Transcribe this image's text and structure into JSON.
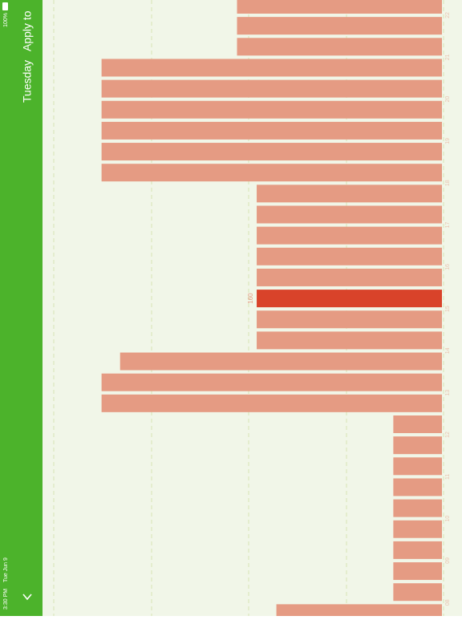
{
  "status_bar": {
    "time": "3:30 PM",
    "date": "Tue Jun 9",
    "battery": "100%"
  },
  "sidebar": {
    "apply": "Apply to",
    "day": "Tuesday"
  },
  "chart_data": {
    "type": "bar",
    "orientation": "horizontal",
    "hour_labels": [
      "22",
      "21",
      "20",
      "19",
      "18",
      "17",
      "16",
      "15",
      "14",
      "13",
      "12",
      "11",
      "10",
      "09",
      "08"
    ],
    "values": [
      177,
      177,
      177,
      294,
      294,
      294,
      294,
      294,
      294,
      160,
      160,
      160,
      160,
      160,
      160,
      160,
      160,
      278,
      294,
      294,
      42,
      42,
      42,
      42,
      42,
      42,
      42,
      42,
      42,
      143
    ],
    "xlim": [
      0,
      345
    ],
    "selected": 14,
    "color": "#e59b83",
    "selected_color": "#d9432a"
  }
}
